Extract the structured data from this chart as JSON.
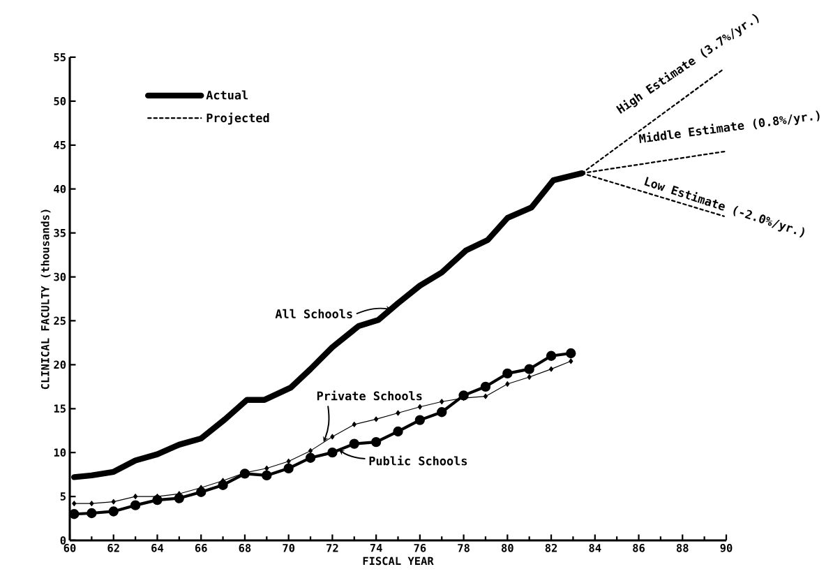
{
  "chart_data": {
    "type": "line",
    "xlabel": "FISCAL YEAR",
    "ylabel": "CLINICAL FACULTY (thousands)",
    "xlim": [
      60,
      90
    ],
    "xticks": [
      60,
      62,
      64,
      66,
      68,
      70,
      72,
      74,
      76,
      78,
      80,
      82,
      84,
      86,
      88,
      90
    ],
    "ylim": [
      0,
      55
    ],
    "yticks": [
      0,
      5,
      10,
      15,
      20,
      25,
      30,
      35,
      40,
      45,
      50,
      55
    ],
    "legend": "top left",
    "series": [
      {
        "name": "Actual",
        "color": "#000000",
        "marker": "none",
        "line_style": "solid",
        "x": [
          60.2,
          61,
          62,
          63,
          64,
          65,
          66,
          67.1,
          68.1,
          68.9,
          70.1,
          71,
          72,
          73.2,
          74.1,
          75,
          76,
          77,
          78.1,
          79.1,
          80,
          81.1,
          82.1,
          83.4
        ],
        "values": [
          7.2,
          7.4,
          7.8,
          9.1,
          9.8,
          10.9,
          11.6,
          13.8,
          16.0,
          16.0,
          17.4,
          19.5,
          22.0,
          24.4,
          25.1,
          27.0,
          29.0,
          30.5,
          33.0,
          34.2,
          36.7,
          37.9,
          41.0,
          41.8
        ]
      },
      {
        "color": "#000000",
        "marker": "circle",
        "line_style": "solid",
        "x": [
          60.2,
          61,
          62,
          63,
          64,
          65,
          66,
          67,
          68,
          69,
          70,
          71,
          72,
          73,
          74,
          75,
          76,
          77,
          78,
          79,
          80,
          81,
          82,
          82.9
        ],
        "values": [
          3.0,
          3.1,
          3.3,
          4.0,
          4.6,
          4.8,
          5.5,
          6.3,
          7.6,
          7.4,
          8.2,
          9.4,
          10.0,
          11.0,
          11.2,
          12.4,
          13.7,
          14.6,
          16.5,
          17.5,
          19.0,
          19.5,
          21.0,
          21.3
        ]
      },
      {
        "color": "#000000",
        "marker": "diamond",
        "line_style": "solid",
        "x": [
          60.2,
          61,
          62,
          63,
          64,
          65,
          66,
          67,
          68,
          69,
          70,
          71,
          72,
          73,
          74,
          75,
          76,
          77,
          78,
          79,
          80,
          81,
          82,
          82.9
        ],
        "values": [
          4.2,
          4.2,
          4.4,
          5.0,
          5.0,
          5.3,
          6.0,
          6.8,
          7.7,
          8.2,
          9.0,
          10.2,
          11.8,
          13.2,
          13.8,
          14.5,
          15.2,
          15.8,
          16.2,
          16.4,
          17.8,
          18.6,
          19.5,
          20.4
        ]
      },
      {
        "name": "Projected",
        "color": "#000000",
        "marker": "none",
        "line_style": "dashed",
        "x": [
          83.4,
          89.9
        ],
        "values": [
          41.8,
          53.7
        ]
      },
      {
        "color": "#000000",
        "marker": "none",
        "line_style": "dashed",
        "x": [
          83.4,
          90
        ],
        "values": [
          41.8,
          44.3
        ]
      },
      {
        "color": "#000000",
        "marker": "none",
        "line_style": "dashed",
        "x": [
          83.4,
          89.9
        ],
        "values": [
          41.8,
          36.9
        ]
      }
    ],
    "annotations": [
      {
        "text": "All Schools",
        "x": 74.7,
        "y": 26.3
      },
      {
        "text": "Private Schools",
        "x": 71.6,
        "y": 11.2
      },
      {
        "text": "Public Schools",
        "x": 72.3,
        "y": 10.3
      },
      {
        "text": "High Estimate (3.7%/yr.)",
        "x": 86,
        "y": 46.6
      },
      {
        "text": "Middle Estimate (0.8%/yr.)",
        "x": 86,
        "y": 42.8
      },
      {
        "text": "Low Estimate (-2.0%/yr.)",
        "x": 86,
        "y": 39.8
      }
    ]
  }
}
